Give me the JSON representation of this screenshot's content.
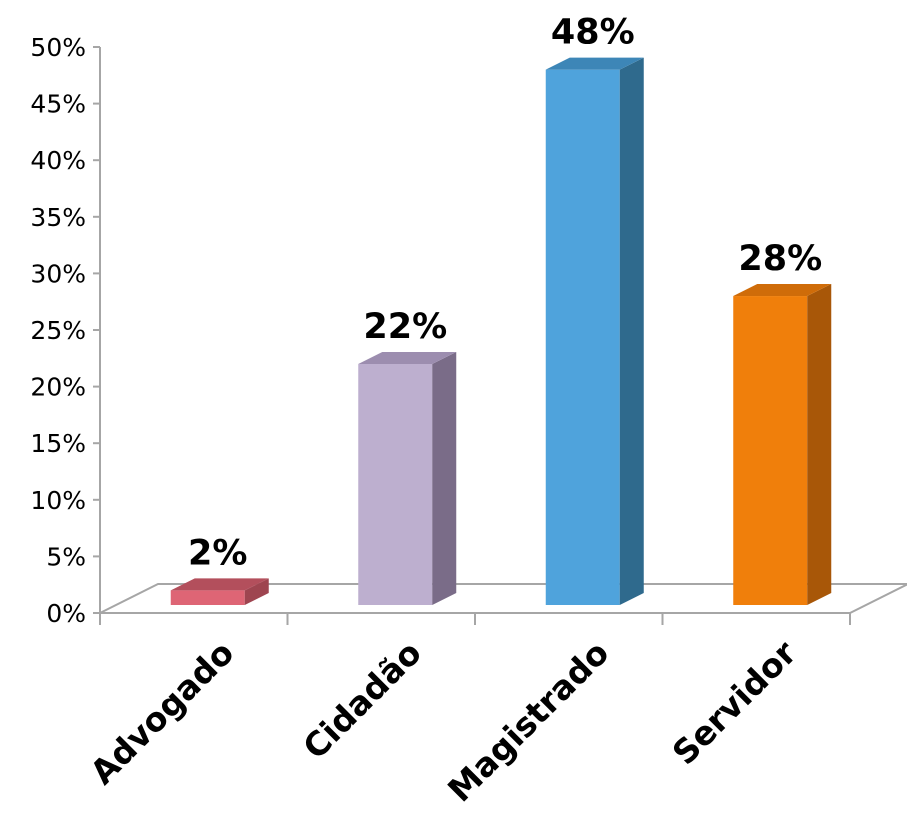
{
  "chart_data": {
    "type": "bar",
    "style": "3d-column",
    "categories": [
      "Advogado",
      "Cidadão",
      "Magistrado",
      "Servidor"
    ],
    "values": [
      2,
      22,
      48,
      28
    ],
    "data_labels": [
      "2%",
      "22%",
      "48%",
      "28%"
    ],
    "value_unit": "%",
    "ylim": [
      0,
      50
    ],
    "yticks": [
      0,
      5,
      10,
      15,
      20,
      25,
      30,
      35,
      40,
      45,
      50
    ],
    "ytick_labels": [
      "0%",
      "5%",
      "10%",
      "15%",
      "20%",
      "25%",
      "30%",
      "35%",
      "40%",
      "45%",
      "50%"
    ],
    "grid": false,
    "legend": "none",
    "colors": [
      {
        "front": "#de6575",
        "side": "#9e4550",
        "top": "#b34f5c"
      },
      {
        "front": "#bdafcf",
        "side": "#7a6c88",
        "top": "#9c8daf"
      },
      {
        "front": "#4fa3dc",
        "side": "#2f6a8d",
        "top": "#3d86b7"
      },
      {
        "front": "#f07f0b",
        "side": "#a85708",
        "top": "#cf6c09"
      }
    ]
  }
}
